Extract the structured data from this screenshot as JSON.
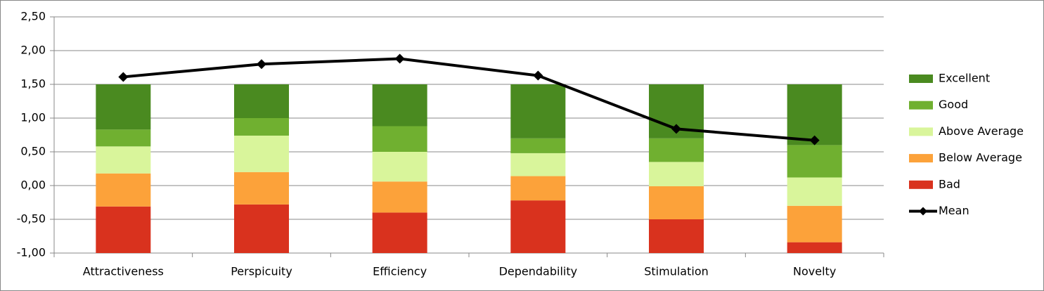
{
  "chart_data": {
    "type": "bar",
    "stacked": true,
    "categories": [
      "Attractiveness",
      "Perspicuity",
      "Efficiency",
      "Dependability",
      "Stimulation",
      "Novelty"
    ],
    "series": [
      {
        "name": "Bad",
        "color": "#d9321e",
        "values": [
          0.69,
          0.72,
          0.6,
          0.78,
          0.5,
          0.16
        ]
      },
      {
        "name": "Below Average",
        "color": "#fca23a",
        "values": [
          0.49,
          0.48,
          0.46,
          0.36,
          0.49,
          0.54
        ]
      },
      {
        "name": "Above Average",
        "color": "#d9f59b",
        "values": [
          0.4,
          0.54,
          0.44,
          0.34,
          0.36,
          0.42
        ]
      },
      {
        "name": "Good",
        "color": "#70b030",
        "values": [
          0.25,
          0.26,
          0.38,
          0.22,
          0.35,
          0.48
        ]
      },
      {
        "name": "Excellent",
        "color": "#4a8a20",
        "values": [
          0.67,
          0.5,
          0.62,
          0.8,
          0.8,
          0.9
        ]
      },
      {
        "name": "Mean",
        "color": "#000000",
        "type": "line",
        "values": [
          1.61,
          1.8,
          1.88,
          1.63,
          0.84,
          0.67
        ]
      }
    ],
    "ylim": [
      -1,
      2.5
    ],
    "yticks": [
      {
        "value": -1,
        "label": "-1,00"
      },
      {
        "value": -0.5,
        "label": "-0,50"
      },
      {
        "value": 0,
        "label": "0,00"
      },
      {
        "value": 0.5,
        "label": "0,50"
      },
      {
        "value": 1,
        "label": "1,00"
      },
      {
        "value": 1.5,
        "label": "1,50"
      },
      {
        "value": 2,
        "label": "2,00"
      },
      {
        "value": 2.5,
        "label": "2,50"
      }
    ],
    "grid": true,
    "legend": "right"
  }
}
